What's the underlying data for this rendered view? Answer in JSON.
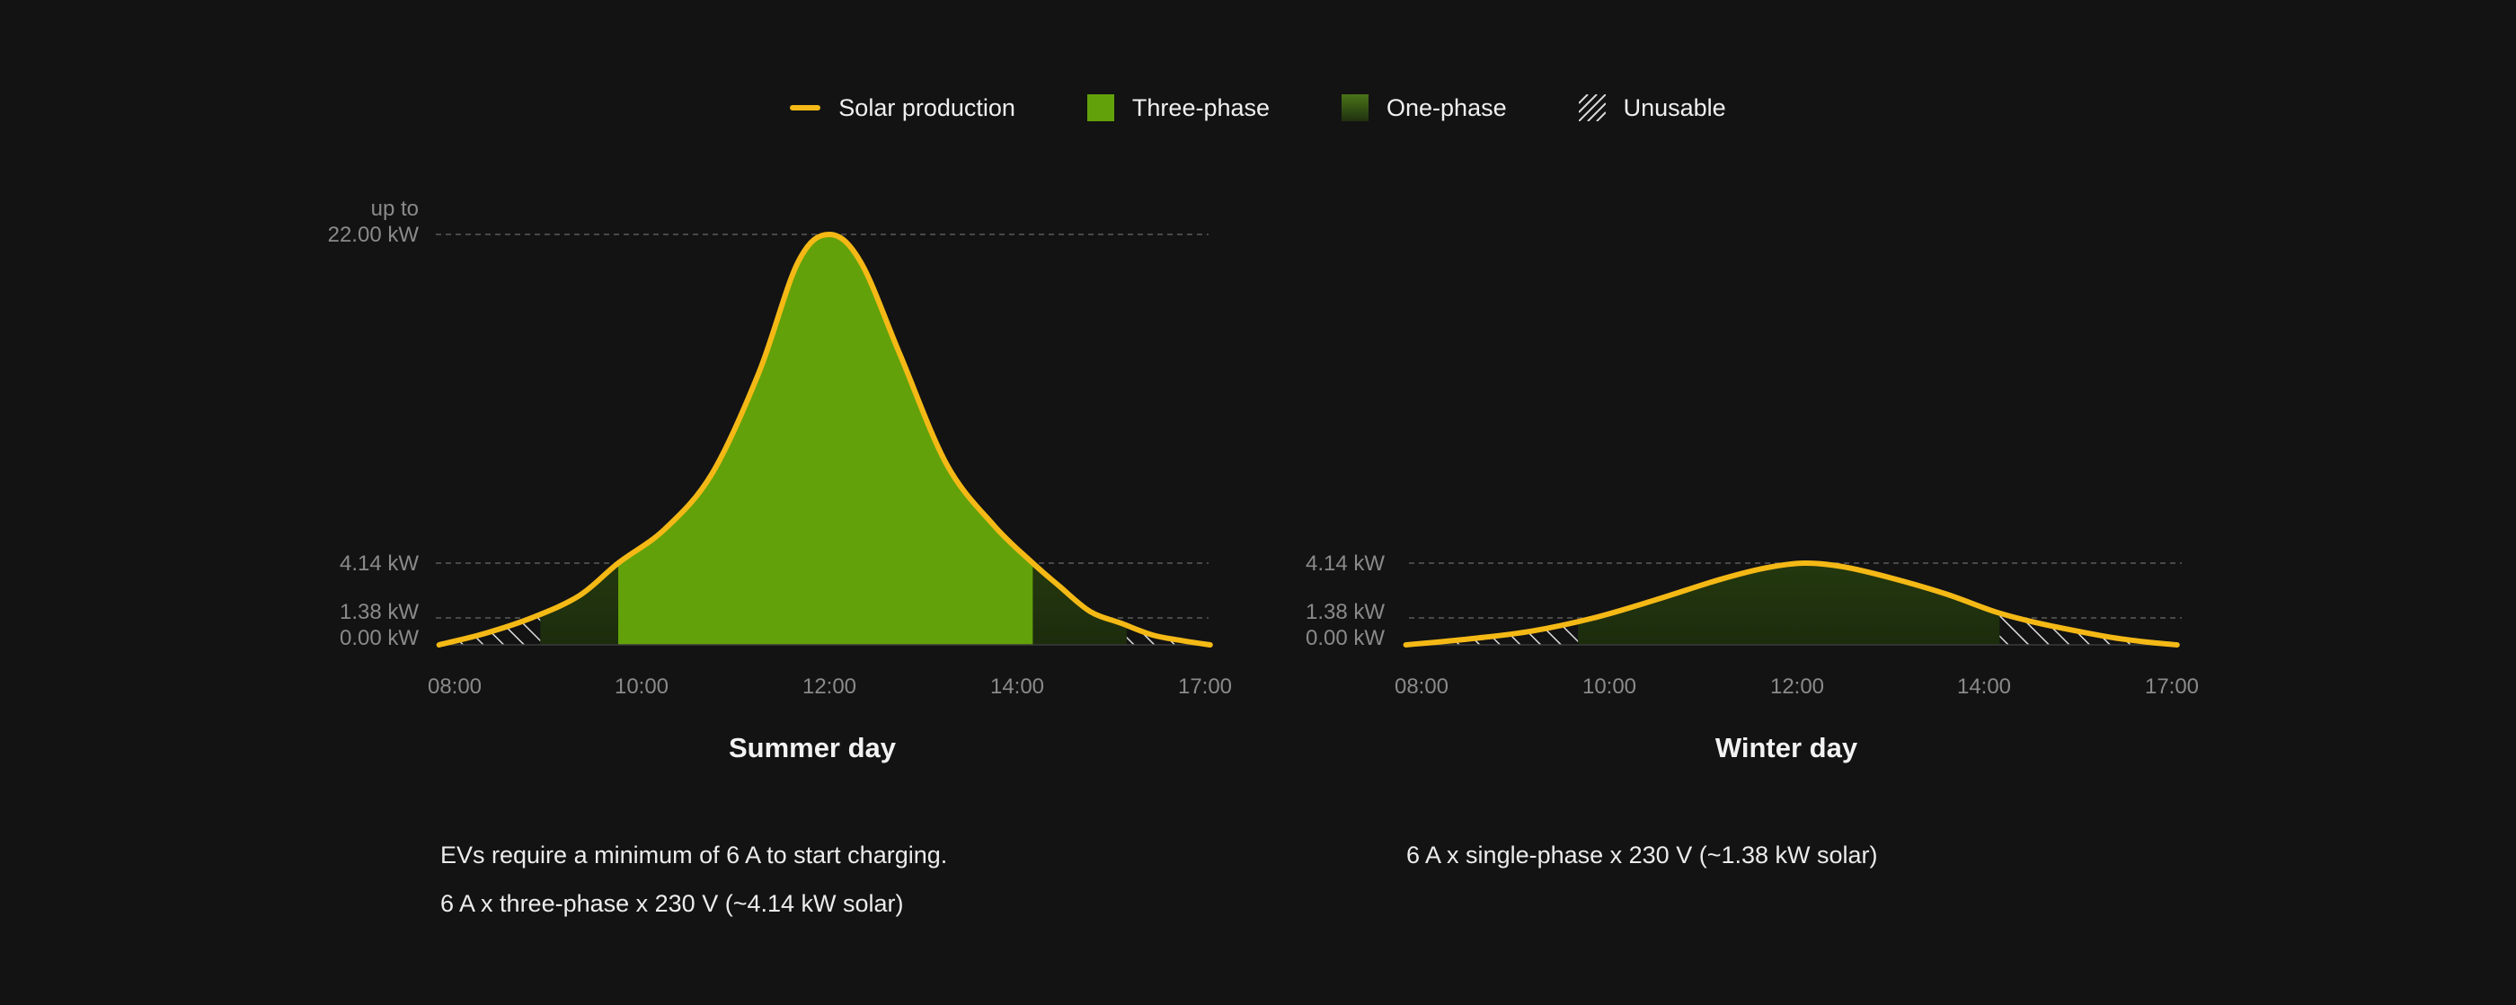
{
  "legend": {
    "solar": "Solar production",
    "three_phase": "Three-phase",
    "one_phase": "One-phase",
    "unusable": "Unusable"
  },
  "colors": {
    "background": "#131313",
    "solar_line": "#f5b916",
    "three_phase": "#63a10a",
    "one_phase_top": "#4a7418",
    "one_phase_bottom": "#20310f",
    "unusable_hatch": "#dddddd",
    "grid": "#5a5a5a",
    "tick_text": "#8a8a8a"
  },
  "chart_data": [
    {
      "type": "area",
      "title": "Summer day",
      "x_ticks": [
        "08:00",
        "10:00",
        "12:00",
        "14:00",
        "17:00"
      ],
      "x_range": [
        "07:50",
        "17:05"
      ],
      "y_ticks": [
        {
          "value": 0.0,
          "label": "0.00 kW"
        },
        {
          "value": 1.38,
          "label": "1.38 kW"
        },
        {
          "value": 4.14,
          "label": "4.14 kW"
        },
        {
          "value": 22.0,
          "label_top": "up to",
          "label": "22.00 kW"
        }
      ],
      "y_scale": "nonlinear",
      "grid": "dashed horizontal lines at tick values",
      "series": [
        {
          "name": "Solar production",
          "x": [
            "07:50",
            "08:20",
            "08:50",
            "09:20",
            "09:45",
            "10:15",
            "10:45",
            "11:15",
            "11:40",
            "12:00",
            "12:20",
            "12:45",
            "13:15",
            "13:45",
            "14:15",
            "14:40",
            "15:10",
            "15:40",
            "16:10",
            "16:40",
            "17:05"
          ],
          "y": [
            0.0,
            0.6,
            1.4,
            2.5,
            4.14,
            6.0,
            9.0,
            14.5,
            20.5,
            22.0,
            20.5,
            15.5,
            9.5,
            6.2,
            4.14,
            3.0,
            1.7,
            1.1,
            0.5,
            0.2,
            0.0
          ]
        }
      ],
      "regions": [
        {
          "name": "Unusable",
          "from": "07:50",
          "to": "08:55"
        },
        {
          "name": "One-phase",
          "from": "08:55",
          "to": "09:45"
        },
        {
          "name": "Three-phase",
          "from": "09:45",
          "to": "14:15"
        },
        {
          "name": "One-phase",
          "from": "14:15",
          "to": "15:45"
        },
        {
          "name": "Unusable",
          "from": "15:45",
          "to": "17:05"
        }
      ]
    },
    {
      "type": "area",
      "title": "Winter day",
      "x_ticks": [
        "08:00",
        "10:00",
        "12:00",
        "14:00",
        "17:00"
      ],
      "x_range": [
        "07:50",
        "17:05"
      ],
      "y_ticks": [
        {
          "value": 0.0,
          "label": "0.00 kW"
        },
        {
          "value": 1.38,
          "label": "1.38 kW"
        },
        {
          "value": 4.14,
          "label": "4.14 kW"
        }
      ],
      "y_scale": "nonlinear",
      "grid": "dashed horizontal lines at tick values",
      "series": [
        {
          "name": "Solar production",
          "x": [
            "07:50",
            "08:30",
            "09:10",
            "09:50",
            "10:30",
            "11:10",
            "11:40",
            "12:05",
            "12:30",
            "13:00",
            "13:35",
            "14:10",
            "14:45",
            "15:20",
            "16:00",
            "16:35",
            "17:05"
          ],
          "y": [
            0.0,
            0.3,
            0.7,
            1.38,
            2.3,
            3.3,
            3.9,
            4.14,
            3.95,
            3.4,
            2.6,
            1.7,
            1.2,
            0.8,
            0.4,
            0.15,
            0.0
          ]
        }
      ],
      "regions": [
        {
          "name": "Unusable",
          "from": "07:50",
          "to": "09:40"
        },
        {
          "name": "One-phase",
          "from": "09:40",
          "to": "14:15"
        },
        {
          "name": "Unusable",
          "from": "14:15",
          "to": "17:05"
        }
      ]
    }
  ],
  "notes": {
    "summer_line1": "EVs require a minimum of 6 A to start charging.",
    "summer_line2": "6 A x three-phase x 230 V (~4.14 kW solar)",
    "winter_line1": "6 A x single-phase x 230 V (~1.38 kW solar)"
  }
}
